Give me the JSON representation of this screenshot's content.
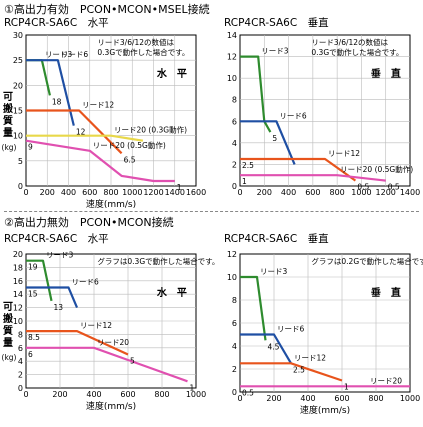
{
  "sections": [
    {
      "heading": "①高出力有効　PCON•MCON•MSEL接続"
    },
    {
      "heading": "②高出力無効　PCON•MCON接続"
    }
  ],
  "chart_data": [
    {
      "type": "line",
      "title": "RCP4CR-SA6C　水平",
      "xlabel": "速度(mm/s)",
      "ylabel": "可搬質量(kg)",
      "xlim": [
        0,
        1600
      ],
      "ylim": [
        0,
        30
      ],
      "xticks": [
        0,
        200,
        400,
        600,
        800,
        1000,
        1200,
        1400,
        1600
      ],
      "yticks": [
        0,
        5,
        10,
        15,
        20,
        25,
        30
      ],
      "grid": true,
      "note": "リード3/6/12の数値は\n0.3Gで動作した場合です。",
      "orientation_label": "水　平",
      "series": [
        {
          "name": "リード3",
          "color": "#2e8b2e",
          "points": [
            [
              0,
              25
            ],
            [
              150,
              25
            ],
            [
              225,
              18
            ]
          ]
        },
        {
          "name": "リード6",
          "color": "#1f4fa3",
          "points": [
            [
              0,
              25
            ],
            [
              300,
              25
            ],
            [
              450,
              12
            ]
          ]
        },
        {
          "name": "リード12",
          "color": "#e8541c",
          "points": [
            [
              0,
              15
            ],
            [
              500,
              15
            ],
            [
              900,
              6.5
            ]
          ]
        },
        {
          "name": "リード20 (0.3G動作)",
          "color": "#e8d84a",
          "points": [
            [
              0,
              10
            ],
            [
              800,
              10
            ],
            [
              1100,
              9
            ]
          ]
        },
        {
          "name": "リード20 (0.5G動作)",
          "color": "#e050b0",
          "points": [
            [
              0,
              9
            ],
            [
              600,
              7
            ],
            [
              900,
              2
            ],
            [
              1200,
              1
            ],
            [
              1400,
              1
            ]
          ]
        }
      ],
      "annotations": [
        {
          "text": "18",
          "x": 225,
          "y": 18
        },
        {
          "text": "12",
          "x": 450,
          "y": 12
        },
        {
          "text": "6.5",
          "x": 900,
          "y": 6.5
        },
        {
          "text": "9",
          "x": 0,
          "y": 9
        },
        {
          "text": "1",
          "x": 1400,
          "y": 1
        }
      ]
    },
    {
      "type": "line",
      "title": "RCP4CR-SA6C　垂直",
      "xlabel": "",
      "ylabel": "",
      "xlim": [
        0,
        1400
      ],
      "ylim": [
        0,
        14
      ],
      "xticks": [
        0,
        200,
        400,
        600,
        800,
        1000,
        1200,
        1400
      ],
      "yticks": [
        0,
        2,
        4,
        6,
        8,
        10,
        12,
        14
      ],
      "grid": true,
      "note": "リード3/6/12の数値は\n0.3Gで動作した場合です。",
      "orientation_label": "垂　直",
      "series": [
        {
          "name": "リード3",
          "color": "#2e8b2e",
          "points": [
            [
              0,
              12
            ],
            [
              150,
              12
            ],
            [
              200,
              6
            ],
            [
              250,
              5
            ]
          ]
        },
        {
          "name": "リード6",
          "color": "#1f4fa3",
          "points": [
            [
              0,
              6
            ],
            [
              300,
              6
            ],
            [
              450,
              2
            ]
          ]
        },
        {
          "name": "リード12",
          "color": "#e8541c",
          "points": [
            [
              0,
              2.5
            ],
            [
              700,
              2.5
            ],
            [
              950,
              0.5
            ]
          ]
        },
        {
          "name": "リード20 (0.5G動作)",
          "color": "#e050b0",
          "points": [
            [
              0,
              1
            ],
            [
              800,
              1
            ],
            [
              1200,
              0.5
            ]
          ]
        }
      ],
      "annotations": [
        {
          "text": "5",
          "x": 250,
          "y": 5
        },
        {
          "text": "2.5",
          "x": 0,
          "y": 2.5
        },
        {
          "text": "1",
          "x": 0,
          "y": 1
        },
        {
          "text": "0.5",
          "x": 950,
          "y": 0.5
        },
        {
          "text": "0.5",
          "x": 1200,
          "y": 0.5
        }
      ]
    },
    {
      "type": "line",
      "title": "RCP4CR-SA6C　水平",
      "xlabel": "速度(mm/s)",
      "ylabel": "可搬質量(kg)",
      "xlim": [
        0,
        1000
      ],
      "ylim": [
        0,
        20
      ],
      "xticks": [
        0,
        200,
        400,
        600,
        800,
        1000
      ],
      "yticks": [
        0,
        2,
        4,
        6,
        8,
        10,
        12,
        14,
        16,
        18,
        20
      ],
      "grid": true,
      "note": "グラフは0.3Gで動作した場合です。",
      "orientation_label": "水　平",
      "series": [
        {
          "name": "リード3",
          "color": "#2e8b2e",
          "points": [
            [
              0,
              19
            ],
            [
              100,
              19
            ],
            [
              150,
              13
            ]
          ]
        },
        {
          "name": "リード6",
          "color": "#1f4fa3",
          "points": [
            [
              0,
              15
            ],
            [
              250,
              15
            ],
            [
              300,
              12
            ]
          ]
        },
        {
          "name": "リード12",
          "color": "#e8541c",
          "points": [
            [
              0,
              8.5
            ],
            [
              300,
              8.5
            ],
            [
              600,
              5
            ]
          ]
        },
        {
          "name": "リード20",
          "color": "#e050b0",
          "points": [
            [
              0,
              6
            ],
            [
              400,
              6
            ],
            [
              950,
              1
            ]
          ]
        }
      ],
      "annotations": [
        {
          "text": "19",
          "x": 0,
          "y": 19
        },
        {
          "text": "15",
          "x": 0,
          "y": 15
        },
        {
          "text": "13",
          "x": 150,
          "y": 13
        },
        {
          "text": "8.5",
          "x": 0,
          "y": 8.5
        },
        {
          "text": "6",
          "x": 0,
          "y": 6
        },
        {
          "text": "5",
          "x": 600,
          "y": 5
        },
        {
          "text": "1",
          "x": 950,
          "y": 1
        }
      ]
    },
    {
      "type": "line",
      "title": "RCP4CR-SA6C　垂直",
      "xlabel": "速度(mm/s)",
      "ylabel": "",
      "xlim": [
        0,
        1000
      ],
      "ylim": [
        0,
        12
      ],
      "xticks": [
        0,
        200,
        400,
        600,
        800,
        1000
      ],
      "yticks": [
        0,
        2,
        4,
        6,
        8,
        10,
        12
      ],
      "grid": true,
      "note": "グラフは0.2Gで動作した場合です。",
      "orientation_label": "垂　直",
      "series": [
        {
          "name": "リード3",
          "color": "#2e8b2e",
          "points": [
            [
              0,
              10
            ],
            [
              100,
              10
            ],
            [
              150,
              4.5
            ]
          ]
        },
        {
          "name": "リード6",
          "color": "#1f4fa3",
          "points": [
            [
              0,
              5
            ],
            [
              200,
              5
            ],
            [
              300,
              2.5
            ]
          ]
        },
        {
          "name": "リード12",
          "color": "#e8541c",
          "points": [
            [
              0,
              2.5
            ],
            [
              300,
              2.5
            ],
            [
              600,
              1
            ]
          ]
        },
        {
          "name": "リード20",
          "color": "#e050b0",
          "points": [
            [
              0,
              0.5
            ],
            [
              1000,
              0.5
            ]
          ]
        }
      ],
      "annotations": [
        {
          "text": "4.5",
          "x": 150,
          "y": 4.5
        },
        {
          "text": "2.5",
          "x": 300,
          "y": 2.5
        },
        {
          "text": "1",
          "x": 600,
          "y": 1
        },
        {
          "text": "0.5",
          "x": 0,
          "y": 0.5
        }
      ]
    }
  ]
}
